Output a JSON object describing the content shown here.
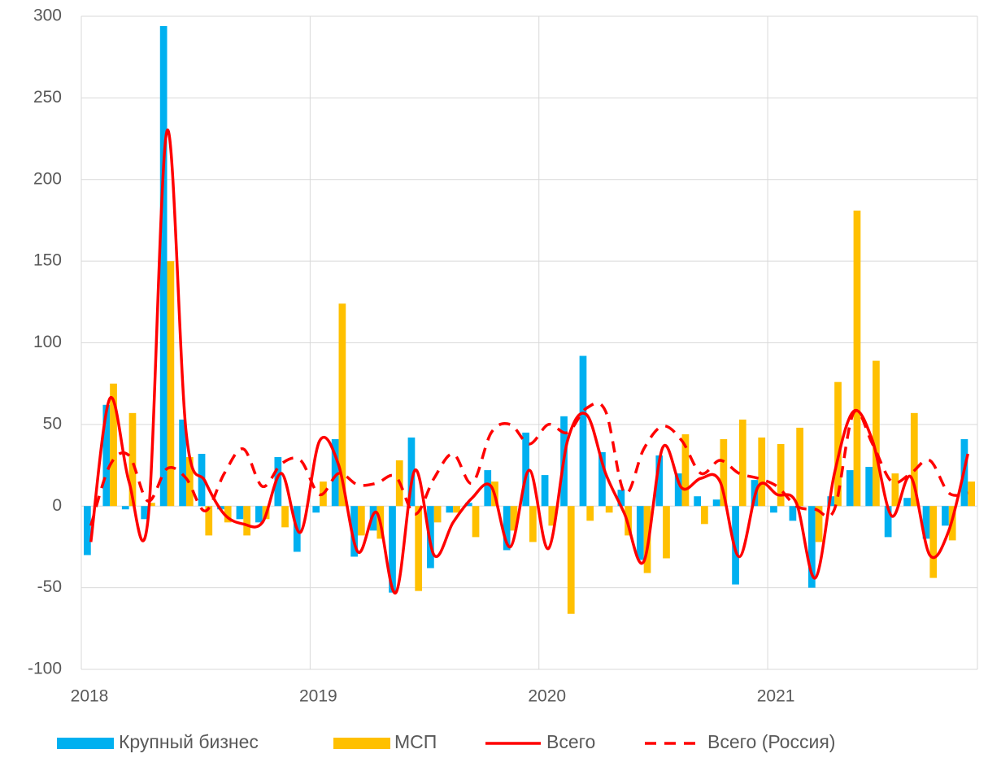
{
  "chart_data": {
    "type": "bar",
    "categories": [
      "2018",
      null,
      null,
      null,
      null,
      null,
      null,
      null,
      null,
      null,
      null,
      null,
      "2019",
      null,
      null,
      null,
      null,
      null,
      null,
      null,
      null,
      null,
      null,
      null,
      "2020",
      null,
      null,
      null,
      null,
      null,
      null,
      null,
      null,
      null,
      null,
      null,
      "2021",
      null,
      null,
      null,
      null,
      null,
      null,
      null,
      null,
      null,
      null
    ],
    "series": [
      {
        "name": "Крупный бизнес",
        "type": "bar",
        "color": "#00b0f0",
        "values": [
          -30,
          62,
          -2,
          -8,
          294,
          53,
          32,
          -2,
          -8,
          -10,
          30,
          -28,
          -4,
          41,
          -31,
          -15,
          -53,
          42,
          -38,
          -4,
          2,
          22,
          -27,
          45,
          19,
          55,
          92,
          33,
          10,
          -33,
          31,
          20,
          6,
          4,
          -48,
          16,
          -4,
          -9,
          -50,
          6,
          22,
          24,
          -19,
          5,
          -20,
          -12,
          41
        ]
      },
      {
        "name": "МСП",
        "type": "bar",
        "color": "#ffc000",
        "values": [
          0,
          75,
          57,
          2,
          150,
          30,
          -18,
          -10,
          -18,
          -8,
          -13,
          0,
          15,
          124,
          -18,
          -20,
          28,
          -52,
          -10,
          -4,
          -19,
          15,
          -15,
          -22,
          -12,
          -66,
          -9,
          -4,
          -18,
          -41,
          -32,
          44,
          -11,
          41,
          53,
          42,
          38,
          48,
          -22,
          76,
          181,
          89,
          20,
          57,
          -44,
          -21,
          15
        ]
      },
      {
        "name": "Всего",
        "type": "line",
        "color": "#ff0000",
        "line_style": "solid",
        "values": [
          -22,
          66,
          15,
          -8,
          230,
          45,
          15,
          -5,
          -11,
          -10,
          20,
          -16,
          40,
          25,
          -28,
          -4,
          -53,
          22,
          -30,
          -10,
          5,
          12,
          -25,
          22,
          -26,
          40,
          56,
          20,
          -5,
          -34,
          36,
          11,
          17,
          15,
          -31,
          12,
          7,
          2,
          -44,
          20,
          58,
          40,
          -6,
          18,
          -30,
          -15,
          32
        ]
      },
      {
        "name": "Всего (Россия)",
        "type": "line",
        "color": "#ff0000",
        "line_style": "dashed",
        "values": [
          -12,
          25,
          31,
          3,
          23,
          17,
          -3,
          20,
          35,
          12,
          26,
          28,
          7,
          20,
          13,
          14,
          18,
          -5,
          17,
          32,
          14,
          45,
          50,
          38,
          50,
          45,
          60,
          58,
          8,
          35,
          49,
          40,
          20,
          28,
          20,
          17,
          12,
          0,
          -2,
          -2,
          57,
          38,
          15,
          20,
          28,
          8,
          8
        ]
      }
    ],
    "ylim": [
      -100,
      300
    ],
    "yticks": [
      -100,
      -50,
      0,
      50,
      100,
      150,
      200,
      250,
      300
    ],
    "grid": true,
    "legend": "bottom"
  }
}
